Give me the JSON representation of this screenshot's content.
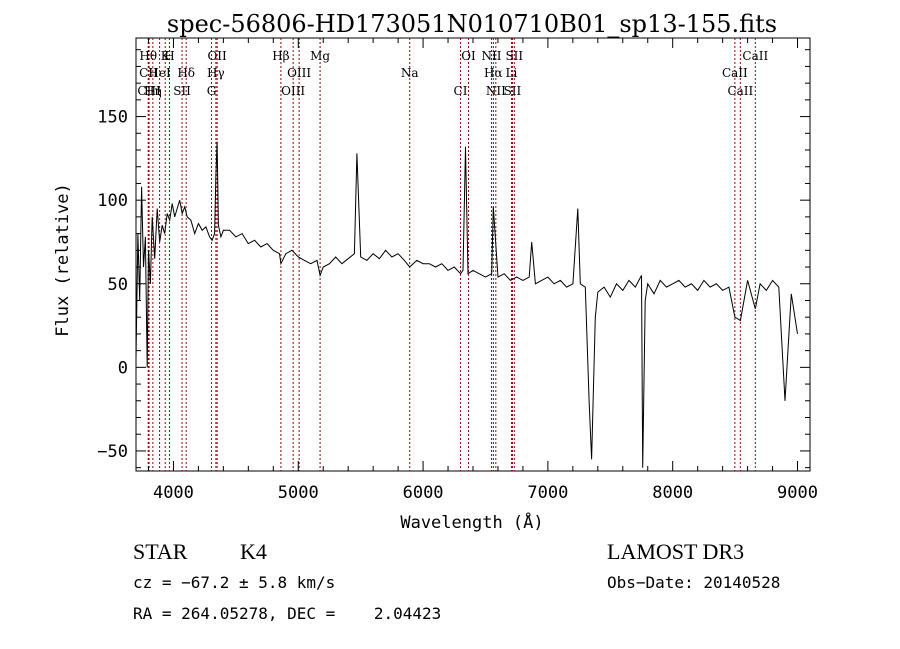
{
  "chart_data": {
    "type": "line",
    "title": "spec-56806-HD173051N010710B01_sp13-155.fits",
    "xlabel": "Wavelength (Å)",
    "ylabel": "Flux (relative)",
    "xlim": [
      3700,
      9100
    ],
    "ylim": [
      -62,
      197
    ],
    "x_ticks": [
      4000,
      5000,
      6000,
      7000,
      8000,
      9000
    ],
    "y_ticks": [
      -50,
      0,
      50,
      100,
      150
    ],
    "grid": false,
    "series": [
      {
        "x": [
          3700,
          3715,
          3730,
          3745,
          3760,
          3775,
          3790,
          3800,
          3815,
          3830,
          3850,
          3870,
          3890,
          3910,
          3930,
          3950,
          3970,
          3990,
          4010,
          4030,
          4050,
          4070,
          4090,
          4110,
          4140,
          4170,
          4200,
          4230,
          4260,
          4290,
          4310,
          4330,
          4340,
          4350,
          4360,
          4380,
          4400,
          4450,
          4500,
          4550,
          4600,
          4650,
          4700,
          4750,
          4800,
          4850,
          4861,
          4900,
          4950,
          5000,
          5050,
          5100,
          5150,
          5175,
          5200,
          5250,
          5300,
          5350,
          5400,
          5450,
          5470,
          5500,
          5550,
          5600,
          5650,
          5700,
          5750,
          5800,
          5850,
          5893,
          5950,
          6000,
          6050,
          6100,
          6150,
          6200,
          6250,
          6300,
          6320,
          6340,
          6360,
          6400,
          6450,
          6500,
          6550,
          6563,
          6600,
          6650,
          6700,
          6750,
          6800,
          6850,
          6870,
          6900,
          6950,
          7000,
          7050,
          7100,
          7150,
          7200,
          7240,
          7260,
          7300,
          7330,
          7350,
          7380,
          7400,
          7450,
          7500,
          7550,
          7600,
          7650,
          7700,
          7750,
          7760,
          7780,
          7800,
          7850,
          7900,
          7950,
          8000,
          8050,
          8100,
          8150,
          8200,
          8250,
          8300,
          8350,
          8400,
          8450,
          8498,
          8542,
          8600,
          8662,
          8700,
          8750,
          8800,
          8850,
          8900,
          8950,
          9000
        ],
        "y": [
          5,
          80,
          40,
          108,
          60,
          78,
          0,
          70,
          50,
          90,
          65,
          95,
          75,
          85,
          80,
          92,
          88,
          98,
          90,
          95,
          100,
          92,
          96,
          90,
          88,
          80,
          86,
          82,
          84,
          78,
          76,
          80,
          115,
          135,
          85,
          78,
          82,
          82,
          78,
          80,
          74,
          76,
          72,
          74,
          70,
          68,
          62,
          68,
          70,
          66,
          64,
          62,
          64,
          55,
          60,
          62,
          66,
          62,
          65,
          68,
          128,
          66,
          64,
          68,
          65,
          70,
          66,
          68,
          64,
          60,
          64,
          62,
          62,
          60,
          62,
          58,
          60,
          56,
          58,
          132,
          56,
          58,
          56,
          54,
          56,
          96,
          54,
          56,
          52,
          54,
          52,
          54,
          75,
          50,
          52,
          54,
          50,
          52,
          48,
          50,
          95,
          50,
          48,
          -20,
          -55,
          30,
          45,
          48,
          42,
          50,
          46,
          52,
          48,
          55,
          -60,
          40,
          50,
          44,
          52,
          48,
          50,
          52,
          48,
          50,
          46,
          52,
          48,
          50,
          46,
          48,
          30,
          28,
          52,
          35,
          50,
          46,
          52,
          48,
          -20,
          44,
          20
        ]
      }
    ],
    "annotations": [
      {
        "label": "Hθ",
        "x": 3798
      },
      {
        "label": "CII",
        "x": 3800
      },
      {
        "label": "CIII",
        "x": 3805
      },
      {
        "label": "K",
        "x": 3934
      },
      {
        "label": "HeI",
        "x": 3889
      },
      {
        "label": "Hη",
        "x": 3835
      },
      {
        "label": "H",
        "x": 3968
      },
      {
        "label": "Hδ",
        "x": 4102
      },
      {
        "label": "SII",
        "x": 4069
      },
      {
        "label": "OII",
        "x": 4350
      },
      {
        "label": "Hγ",
        "x": 4340
      },
      {
        "label": "G",
        "x": 4305
      },
      {
        "label": "Hβ",
        "x": 4861
      },
      {
        "label": "OIII",
        "x": 5007
      },
      {
        "label": "OIII",
        "x": 4959
      },
      {
        "label": "Mg",
        "x": 5175
      },
      {
        "label": "Na",
        "x": 5893
      },
      {
        "label": "CI",
        "x": 6300
      },
      {
        "label": "OI",
        "x": 6364
      },
      {
        "label": "Hα",
        "x": 6563
      },
      {
        "label": "SII",
        "x": 6716
      },
      {
        "label": "NII",
        "x": 6548
      },
      {
        "label": "Li",
        "x": 6708
      },
      {
        "label": "NII",
        "x": 6583
      },
      {
        "label": "SII",
        "x": 6731
      },
      {
        "label": "CaII",
        "x": 8498
      },
      {
        "label": "CaII",
        "x": 8542
      },
      {
        "label": "CaII",
        "x": 8662
      }
    ]
  },
  "info": {
    "object_type": "STAR",
    "subclass": "K4",
    "survey": "LAMOST DR3",
    "redshift": "cz = −67.2 ± 5.8 km/s",
    "obs_date": "Obs−Date: 20140528",
    "coords": "RA = 264.05278, DEC =    2.04423"
  }
}
